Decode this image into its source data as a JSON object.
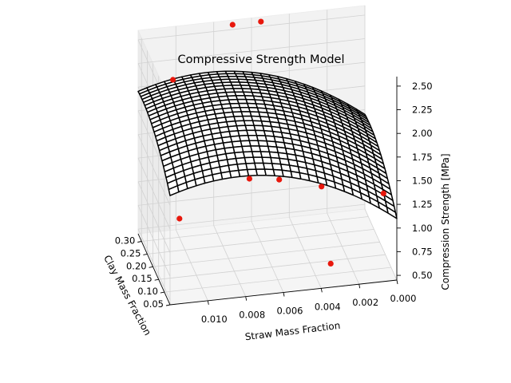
{
  "chart_data": {
    "type": "surface3d",
    "title": "Compressive Strength Model",
    "x_axis": {
      "label": "Straw Mass Fraction",
      "ticks": [
        "0.010",
        "0.008",
        "0.006",
        "0.004",
        "0.002",
        "0.000"
      ],
      "tick_values": [
        0.01,
        0.008,
        0.006,
        0.004,
        0.002,
        0.0
      ],
      "range": [
        0.0,
        0.012
      ]
    },
    "y_axis": {
      "label": "Clay Mass Fraction",
      "ticks": [
        "0.05",
        "0.10",
        "0.15",
        "0.20",
        "0.25",
        "0.30"
      ],
      "tick_values": [
        0.05,
        0.1,
        0.15,
        0.2,
        0.25,
        0.3
      ],
      "range": [
        0.05,
        0.33
      ]
    },
    "z_axis": {
      "label": "Compression Strength [MPa]",
      "ticks": [
        "0.50",
        "0.75",
        "1.00",
        "1.25",
        "1.50",
        "1.75",
        "2.00",
        "2.25",
        "2.50"
      ],
      "tick_values": [
        0.5,
        0.75,
        1.0,
        1.25,
        1.5,
        1.75,
        2.0,
        2.25,
        2.5
      ],
      "range": [
        0.45,
        2.6
      ]
    },
    "surface": {
      "color": "#000000",
      "x_steps": 26,
      "y_steps": 24,
      "x_range": [
        0.0,
        0.012
      ],
      "y_range": [
        0.05,
        0.33
      ]
    },
    "points": {
      "color": "#e8170c",
      "x": [
        0.0115,
        0.0104,
        0.0075,
        0.0058,
        0.0035,
        0.0001,
        0.0035,
        0.0055,
        0.007
      ],
      "y": [
        0.05,
        0.29,
        0.1,
        0.12,
        0.13,
        0.15,
        0.05,
        0.33,
        0.33
      ],
      "z": [
        1.35,
        2.15,
        1.55,
        1.45,
        1.3,
        1.1,
        0.7,
        2.55,
        2.55
      ]
    },
    "grid": true
  }
}
